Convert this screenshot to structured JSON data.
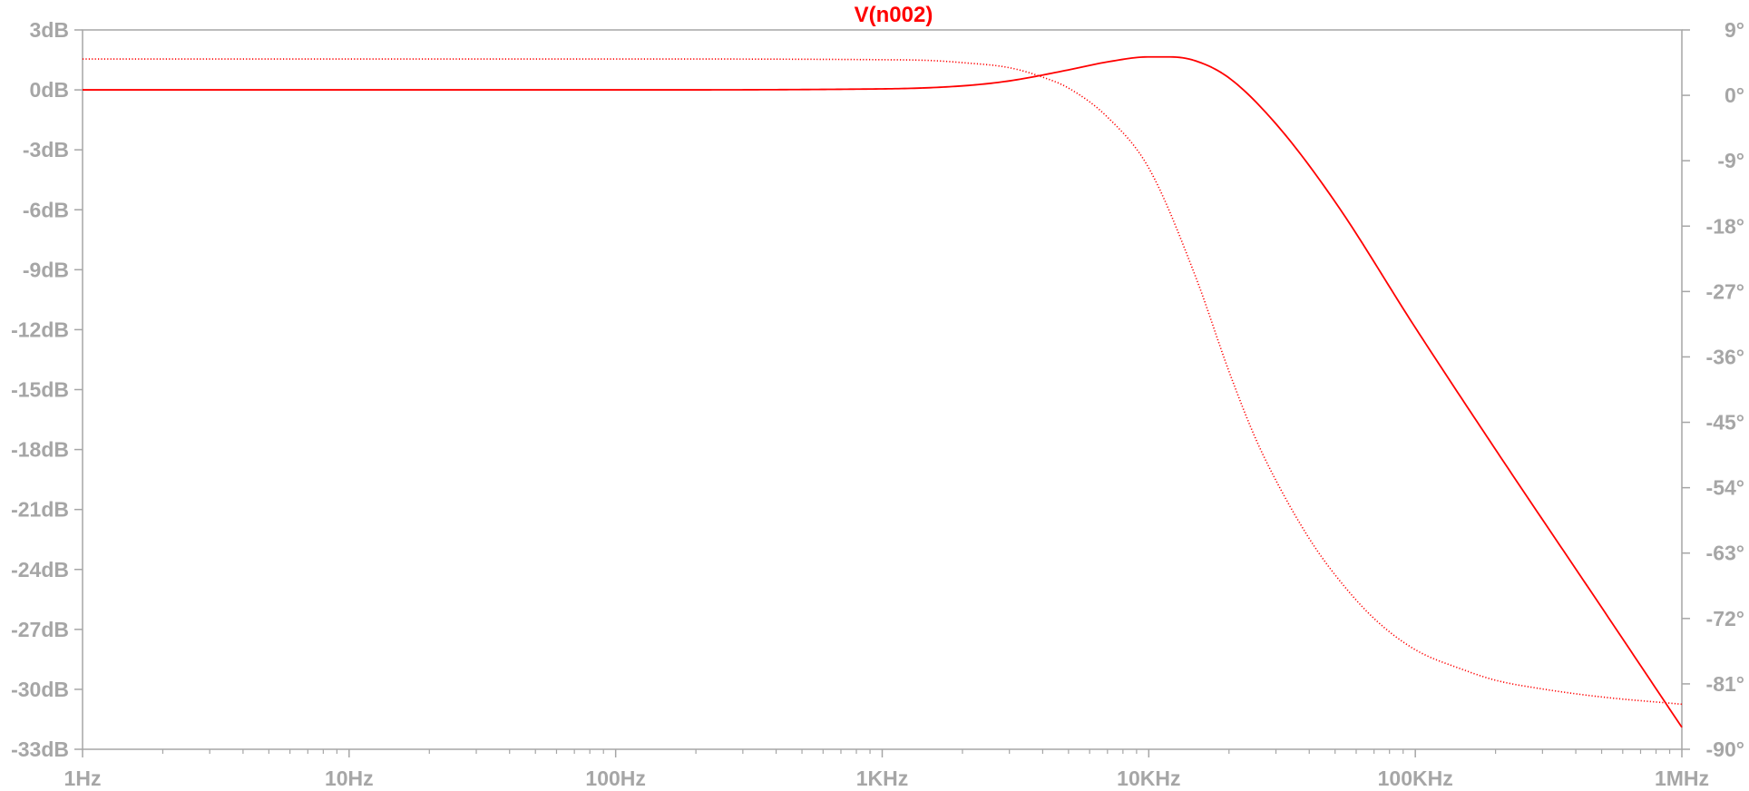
{
  "chart_data": {
    "type": "line",
    "title": "V(n002)",
    "x_scale": "log",
    "x_ticks": [
      "1Hz",
      "10Hz",
      "100Hz",
      "1KHz",
      "10KHz",
      "100KHz",
      "1MHz"
    ],
    "x_tick_values": [
      1,
      10,
      100,
      1000,
      10000,
      100000,
      1000000
    ],
    "xlim": [
      1,
      1000000
    ],
    "y_left_ticks": [
      "3dB",
      "0dB",
      "-3dB",
      "-6dB",
      "-9dB",
      "-12dB",
      "-15dB",
      "-18dB",
      "-21dB",
      "-24dB",
      "-27dB",
      "-30dB",
      "-33dB"
    ],
    "y_left_lim": [
      -33,
      3
    ],
    "y_left_unit": "dB",
    "y_right_ticks": [
      "9°",
      "0°",
      "-9°",
      "-18°",
      "-27°",
      "-36°",
      "-45°",
      "-54°",
      "-63°",
      "-72°",
      "-81°",
      "-90°"
    ],
    "y_right_lim": [
      -90,
      9
    ],
    "y_right_unit": "°",
    "grid": false,
    "series": [
      {
        "axis": "left",
        "style": "solid",
        "color": "#ff0000",
        "x": [
          1,
          10,
          100,
          1000,
          2000,
          3000,
          5000,
          7000,
          10000,
          12000,
          15000,
          20000,
          30000,
          50000,
          100000,
          200000,
          500000,
          1000000
        ],
        "values": [
          0,
          0,
          0,
          0.05,
          0.2,
          0.45,
          1.0,
          1.4,
          1.65,
          1.65,
          1.45,
          0.6,
          -1.7,
          -5.6,
          -11.9,
          -18.0,
          -25.9,
          -31.9
        ]
      },
      {
        "axis": "right",
        "style": "dotted",
        "color": "#ff0000",
        "x": [
          1,
          10,
          100,
          1000,
          1500,
          2000,
          3000,
          4000,
          5000,
          7000,
          10000,
          15000,
          20000,
          25000,
          30000,
          40000,
          50000,
          70000,
          100000,
          150000,
          200000,
          300000,
          500000,
          1000000
        ],
        "values": [
          5,
          5,
          5,
          4.9,
          4.8,
          4.5,
          3.8,
          2.5,
          1.0,
          -3,
          -10,
          -25,
          -38,
          -47,
          -53,
          -61,
          -66,
          -72,
          -76.3,
          -79,
          -80.5,
          -81.7,
          -82.8,
          -83.8
        ]
      }
    ]
  }
}
